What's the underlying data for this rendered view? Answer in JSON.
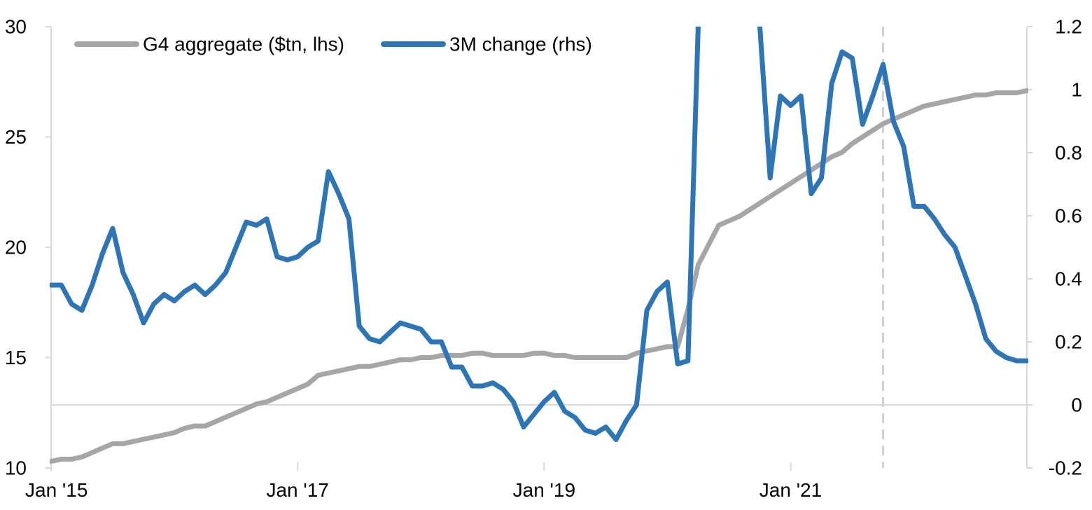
{
  "chart_data": {
    "type": "line",
    "title": "",
    "xlabel": "",
    "ylabel_left": "",
    "ylabel_right": "",
    "xlim": [
      "2015-01",
      "2022-12"
    ],
    "ylim_left": [
      10,
      30
    ],
    "ylim_right": [
      -0.2,
      1.2
    ],
    "yticks_left": [
      10,
      15,
      20,
      25,
      30
    ],
    "yticks_right": [
      -0.2,
      0,
      0.2,
      0.4,
      0.6,
      0.8,
      1,
      1.2
    ],
    "yticks_right_labels": [
      "-0.2",
      "0",
      "0.2",
      "0.4",
      "0.6",
      "0.8",
      "1",
      "1.2"
    ],
    "xticks": [
      {
        "date": "2015-01",
        "label": "Jan '15"
      },
      {
        "date": "2017-01",
        "label": "Jan '17"
      },
      {
        "date": "2019-01",
        "label": "Jan '19"
      },
      {
        "date": "2021-01",
        "label": "Jan '21"
      }
    ],
    "grid": false,
    "zero_line_right_axis": 0,
    "forecast_divider": "2021-10",
    "legend_position": "top-left",
    "series": [
      {
        "name": "G4 aggregate ($tn, lhs)",
        "axis": "left",
        "color": "#a6a6a6",
        "points": [
          [
            "2015-01",
            10.3
          ],
          [
            "2015-02",
            10.4
          ],
          [
            "2015-03",
            10.4
          ],
          [
            "2015-04",
            10.5
          ],
          [
            "2015-05",
            10.7
          ],
          [
            "2015-06",
            10.9
          ],
          [
            "2015-07",
            11.1
          ],
          [
            "2015-08",
            11.1
          ],
          [
            "2015-09",
            11.2
          ],
          [
            "2015-10",
            11.3
          ],
          [
            "2015-11",
            11.4
          ],
          [
            "2015-12",
            11.5
          ],
          [
            "2016-01",
            11.6
          ],
          [
            "2016-02",
            11.8
          ],
          [
            "2016-03",
            11.9
          ],
          [
            "2016-04",
            11.9
          ],
          [
            "2016-05",
            12.1
          ],
          [
            "2016-06",
            12.3
          ],
          [
            "2016-07",
            12.5
          ],
          [
            "2016-08",
            12.7
          ],
          [
            "2016-09",
            12.9
          ],
          [
            "2016-10",
            13.0
          ],
          [
            "2016-11",
            13.2
          ],
          [
            "2016-12",
            13.4
          ],
          [
            "2017-01",
            13.6
          ],
          [
            "2017-02",
            13.8
          ],
          [
            "2017-03",
            14.2
          ],
          [
            "2017-04",
            14.3
          ],
          [
            "2017-05",
            14.4
          ],
          [
            "2017-06",
            14.5
          ],
          [
            "2017-07",
            14.6
          ],
          [
            "2017-08",
            14.6
          ],
          [
            "2017-09",
            14.7
          ],
          [
            "2017-10",
            14.8
          ],
          [
            "2017-11",
            14.9
          ],
          [
            "2017-12",
            14.9
          ],
          [
            "2018-01",
            15.0
          ],
          [
            "2018-02",
            15.0
          ],
          [
            "2018-03",
            15.1
          ],
          [
            "2018-04",
            15.1
          ],
          [
            "2018-05",
            15.1
          ],
          [
            "2018-06",
            15.2
          ],
          [
            "2018-07",
            15.2
          ],
          [
            "2018-08",
            15.1
          ],
          [
            "2018-09",
            15.1
          ],
          [
            "2018-10",
            15.1
          ],
          [
            "2018-11",
            15.1
          ],
          [
            "2018-12",
            15.2
          ],
          [
            "2019-01",
            15.2
          ],
          [
            "2019-02",
            15.1
          ],
          [
            "2019-03",
            15.1
          ],
          [
            "2019-04",
            15.0
          ],
          [
            "2019-05",
            15.0
          ],
          [
            "2019-06",
            15.0
          ],
          [
            "2019-07",
            15.0
          ],
          [
            "2019-08",
            15.0
          ],
          [
            "2019-09",
            15.0
          ],
          [
            "2019-10",
            15.2
          ],
          [
            "2019-11",
            15.3
          ],
          [
            "2019-12",
            15.4
          ],
          [
            "2020-01",
            15.5
          ],
          [
            "2020-02",
            15.5
          ],
          [
            "2020-03",
            17.2
          ],
          [
            "2020-04",
            19.2
          ],
          [
            "2020-05",
            20.1
          ],
          [
            "2020-06",
            21.0
          ],
          [
            "2020-07",
            21.2
          ],
          [
            "2020-08",
            21.4
          ],
          [
            "2020-09",
            21.7
          ],
          [
            "2020-10",
            22.0
          ],
          [
            "2020-11",
            22.3
          ],
          [
            "2020-12",
            22.6
          ],
          [
            "2021-01",
            22.9
          ],
          [
            "2021-02",
            23.2
          ],
          [
            "2021-03",
            23.5
          ],
          [
            "2021-04",
            23.8
          ],
          [
            "2021-05",
            24.1
          ],
          [
            "2021-06",
            24.3
          ],
          [
            "2021-07",
            24.7
          ],
          [
            "2021-08",
            25.0
          ],
          [
            "2021-09",
            25.3
          ],
          [
            "2021-10",
            25.6
          ],
          [
            "2021-11",
            25.8
          ],
          [
            "2021-12",
            26.0
          ],
          [
            "2022-01",
            26.2
          ],
          [
            "2022-02",
            26.4
          ],
          [
            "2022-03",
            26.5
          ],
          [
            "2022-04",
            26.6
          ],
          [
            "2022-05",
            26.7
          ],
          [
            "2022-06",
            26.8
          ],
          [
            "2022-07",
            26.9
          ],
          [
            "2022-08",
            26.9
          ],
          [
            "2022-09",
            27.0
          ],
          [
            "2022-10",
            27.0
          ],
          [
            "2022-11",
            27.0
          ],
          [
            "2022-12",
            27.1
          ]
        ]
      },
      {
        "name": "3M change (rhs)",
        "axis": "right",
        "color": "#2e75b6",
        "points": [
          [
            "2015-01",
            0.38
          ],
          [
            "2015-02",
            0.38
          ],
          [
            "2015-03",
            0.32
          ],
          [
            "2015-04",
            0.3
          ],
          [
            "2015-05",
            0.38
          ],
          [
            "2015-06",
            0.48
          ],
          [
            "2015-07",
            0.56
          ],
          [
            "2015-08",
            0.42
          ],
          [
            "2015-09",
            0.35
          ],
          [
            "2015-10",
            0.26
          ],
          [
            "2015-11",
            0.32
          ],
          [
            "2015-12",
            0.35
          ],
          [
            "2016-01",
            0.33
          ],
          [
            "2016-02",
            0.36
          ],
          [
            "2016-03",
            0.38
          ],
          [
            "2016-04",
            0.35
          ],
          [
            "2016-05",
            0.38
          ],
          [
            "2016-06",
            0.42
          ],
          [
            "2016-07",
            0.5
          ],
          [
            "2016-08",
            0.58
          ],
          [
            "2016-09",
            0.57
          ],
          [
            "2016-10",
            0.59
          ],
          [
            "2016-11",
            0.47
          ],
          [
            "2016-12",
            0.46
          ],
          [
            "2017-01",
            0.47
          ],
          [
            "2017-02",
            0.5
          ],
          [
            "2017-03",
            0.52
          ],
          [
            "2017-04",
            0.74
          ],
          [
            "2017-05",
            0.67
          ],
          [
            "2017-06",
            0.59
          ],
          [
            "2017-07",
            0.25
          ],
          [
            "2017-08",
            0.21
          ],
          [
            "2017-09",
            0.2
          ],
          [
            "2017-10",
            0.23
          ],
          [
            "2017-11",
            0.26
          ],
          [
            "2017-12",
            0.25
          ],
          [
            "2018-01",
            0.24
          ],
          [
            "2018-02",
            0.2
          ],
          [
            "2018-03",
            0.2
          ],
          [
            "2018-04",
            0.12
          ],
          [
            "2018-05",
            0.12
          ],
          [
            "2018-06",
            0.06
          ],
          [
            "2018-07",
            0.06
          ],
          [
            "2018-08",
            0.07
          ],
          [
            "2018-09",
            0.05
          ],
          [
            "2018-10",
            0.01
          ],
          [
            "2018-11",
            -0.07
          ],
          [
            "2018-12",
            -0.03
          ],
          [
            "2019-01",
            0.01
          ],
          [
            "2019-02",
            0.04
          ],
          [
            "2019-03",
            -0.02
          ],
          [
            "2019-04",
            -0.04
          ],
          [
            "2019-05",
            -0.08
          ],
          [
            "2019-06",
            -0.09
          ],
          [
            "2019-07",
            -0.07
          ],
          [
            "2019-08",
            -0.11
          ],
          [
            "2019-09",
            -0.05
          ],
          [
            "2019-10",
            0.0
          ],
          [
            "2019-11",
            0.3
          ],
          [
            "2019-12",
            0.36
          ],
          [
            "2020-01",
            0.39
          ],
          [
            "2020-02",
            0.13
          ],
          [
            "2020-03",
            0.14
          ],
          [
            "2020-04",
            1.2
          ],
          null,
          [
            "2020-10",
            1.2
          ],
          [
            "2020-11",
            0.72
          ],
          [
            "2020-12",
            0.98
          ],
          [
            "2021-01",
            0.95
          ],
          [
            "2021-02",
            0.98
          ],
          [
            "2021-03",
            0.67
          ],
          [
            "2021-04",
            0.72
          ],
          [
            "2021-05",
            1.02
          ],
          [
            "2021-06",
            1.12
          ],
          [
            "2021-07",
            1.1
          ],
          [
            "2021-08",
            0.89
          ],
          [
            "2021-09",
            0.98
          ],
          [
            "2021-10",
            1.08
          ],
          [
            "2021-11",
            0.9
          ],
          [
            "2021-12",
            0.82
          ],
          [
            "2022-01",
            0.63
          ],
          [
            "2022-02",
            0.63
          ],
          [
            "2022-03",
            0.59
          ],
          [
            "2022-04",
            0.54
          ],
          [
            "2022-05",
            0.5
          ],
          [
            "2022-06",
            0.41
          ],
          [
            "2022-07",
            0.32
          ],
          [
            "2022-08",
            0.21
          ],
          [
            "2022-09",
            0.17
          ],
          [
            "2022-10",
            0.15
          ],
          [
            "2022-11",
            0.14
          ],
          [
            "2022-12",
            0.14
          ]
        ]
      }
    ]
  }
}
